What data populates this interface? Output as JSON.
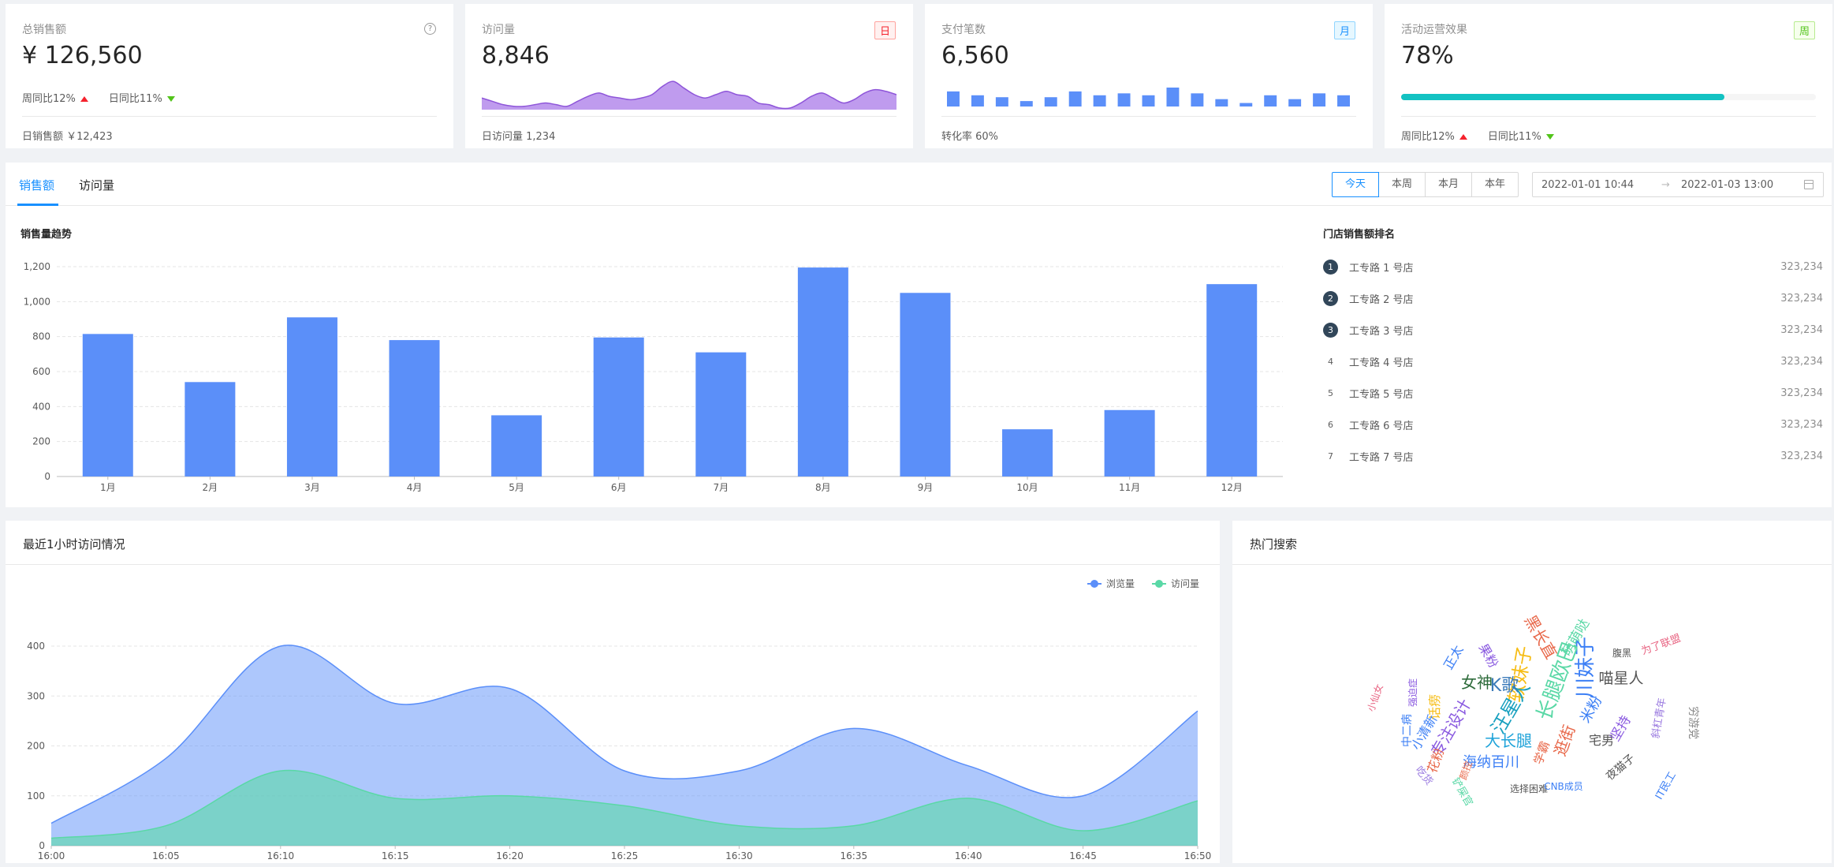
{
  "cards": [
    {
      "title": "总销售额",
      "value": "¥ 126,560",
      "week": "周同比12%",
      "day": "日同比11%",
      "foot": "日销售额 ￥12,423"
    },
    {
      "title": "访问量",
      "tag": "日",
      "value": "8,846",
      "foot": "日访问量 1,234"
    },
    {
      "title": "支付笔数",
      "tag": "月",
      "value": "6,560",
      "foot": "转化率 60%"
    },
    {
      "title": "活动运营效果",
      "tag": "周",
      "value": "78%",
      "progress": 0.78,
      "week": "周同比12%",
      "day": "日同比11%"
    }
  ],
  "colors": {
    "accent": "#1890ff",
    "bar": "#5b8ff9",
    "area1": "#5b8ff9",
    "area2": "#5ad8a6",
    "visitArea": "#a97ae8",
    "progress": "#13c2c2",
    "up": "#f5222d",
    "down": "#52c41a"
  },
  "visits_sparkline": [
    7,
    5,
    3,
    2,
    2,
    3,
    4,
    3,
    2,
    5,
    8,
    10,
    8,
    7,
    6,
    7,
    9,
    14,
    17,
    13,
    9,
    7,
    9,
    11,
    9,
    8,
    4,
    3,
    1,
    1,
    4,
    8,
    10,
    7,
    4,
    6,
    10,
    12,
    11,
    9
  ],
  "payments_bars": [
    7,
    5,
    4,
    2,
    4,
    7,
    5,
    6,
    5,
    9,
    6,
    3,
    1,
    5,
    3,
    6,
    5
  ],
  "sales": {
    "tabs": [
      "销售额",
      "访问量"
    ],
    "ranges": [
      "今天",
      "本周",
      "本月",
      "本年"
    ],
    "active_range": "今天",
    "date_start": "2022-01-01 10:44",
    "date_end": "2022-01-03 13:00",
    "chart_title": "销售量趋势",
    "rank_title": "门店销售额排名",
    "rank": [
      {
        "no": "1",
        "name": "工专路 1 号店",
        "value": "323,234"
      },
      {
        "no": "2",
        "name": "工专路 2 号店",
        "value": "323,234"
      },
      {
        "no": "3",
        "name": "工专路 3 号店",
        "value": "323,234"
      },
      {
        "no": "4",
        "name": "工专路 4 号店",
        "value": "323,234"
      },
      {
        "no": "5",
        "name": "工专路 5 号店",
        "value": "323,234"
      },
      {
        "no": "6",
        "name": "工专路 6 号店",
        "value": "323,234"
      },
      {
        "no": "7",
        "name": "工专路 7 号店",
        "value": "323,234"
      }
    ]
  },
  "visits": {
    "title": "最近1小时访问情况"
  },
  "hot": {
    "title": "热门搜索"
  },
  "chart_data": [
    {
      "type": "bar",
      "title": "销售量趋势",
      "categories": [
        "1月",
        "2月",
        "3月",
        "4月",
        "5月",
        "6月",
        "7月",
        "8月",
        "9月",
        "10月",
        "11月",
        "12月"
      ],
      "values": [
        815,
        540,
        910,
        780,
        350,
        795,
        710,
        1195,
        1050,
        270,
        380,
        1100
      ],
      "ylim": [
        0,
        1200
      ],
      "yticks": [
        "0",
        "200",
        "400",
        "600",
        "800",
        "1,000",
        "1,200"
      ],
      "grid": true
    },
    {
      "type": "area",
      "title": "最近1小时访问情况",
      "x": [
        "16:00",
        "16:05",
        "16:10",
        "16:15",
        "16:20",
        "16:25",
        "16:30",
        "16:35",
        "16:40",
        "16:45",
        "16:50"
      ],
      "series": [
        {
          "name": "浏览量",
          "values": [
            45,
            175,
            400,
            285,
            315,
            150,
            150,
            235,
            160,
            100,
            270
          ]
        },
        {
          "name": "访问量",
          "values": [
            15,
            40,
            150,
            95,
            100,
            80,
            40,
            40,
            95,
            30,
            90
          ]
        }
      ],
      "ylim": [
        0,
        400
      ],
      "yticks": [
        "0",
        "100",
        "200",
        "300",
        "400"
      ],
      "legend": "top-right",
      "grid": true
    }
  ],
  "cloud_words": [
    {
      "text": "川妹子",
      "color": "#3c7ff5"
    },
    {
      "text": "长腿欧巴",
      "color": "#5ad8a6"
    },
    {
      "text": "软妹子",
      "color": "#f6bd16"
    },
    {
      "text": "汪星人",
      "color": "#18a0bf"
    },
    {
      "text": "大长腿",
      "color": "#1fa3d9"
    },
    {
      "text": "海纳百川",
      "color": "#3c7ff5"
    },
    {
      "text": "专注设计",
      "color": "#8a5ae0"
    },
    {
      "text": "喵星人",
      "color": "#555"
    },
    {
      "text": "女神",
      "color": "#2d6b3a"
    },
    {
      "text": "K歌",
      "color": "#3a7ab9"
    },
    {
      "text": "黑长直",
      "color": "#e8684a"
    },
    {
      "text": "米粉",
      "color": "#3c7ff5"
    },
    {
      "text": "逛街",
      "color": "#e8684a"
    },
    {
      "text": "宅男",
      "color": "#555"
    },
    {
      "text": "果粉",
      "color": "#8a5ae0"
    },
    {
      "text": "小清新",
      "color": "#3c7ff5"
    },
    {
      "text": "花粉",
      "color": "#e8684a"
    },
    {
      "text": "吃货",
      "color": "#9a7ae0"
    },
    {
      "text": "萌萌哒",
      "color": "#5ad8a6"
    },
    {
      "text": "坚持",
      "color": "#8a5ae0"
    },
    {
      "text": "夜猫子",
      "color": "#555"
    },
    {
      "text": "IT民工",
      "color": "#3c7ff5"
    },
    {
      "text": "选择困难",
      "color": "#555"
    },
    {
      "text": "CNB成员",
      "color": "#3c7ff5"
    },
    {
      "text": "学霸",
      "color": "#e8684a"
    },
    {
      "text": "正太",
      "color": "#3c7ff5"
    },
    {
      "text": "话痨",
      "color": "#f6bd16"
    },
    {
      "text": "中二病",
      "color": "#3c7ff5"
    },
    {
      "text": "铲屎官",
      "color": "#5ad8a6"
    },
    {
      "text": "为了联盟",
      "color": "#e86482"
    },
    {
      "text": "腹黑",
      "color": "#555"
    },
    {
      "text": "穷游党",
      "color": "#888"
    },
    {
      "text": "小仙女",
      "color": "#e86482"
    },
    {
      "text": "斜杠青年",
      "color": "#9a7ae0"
    },
    {
      "text": "强迫症",
      "color": "#8a5ae0"
    },
    {
      "text": "颜控",
      "color": "#e8684a"
    }
  ]
}
